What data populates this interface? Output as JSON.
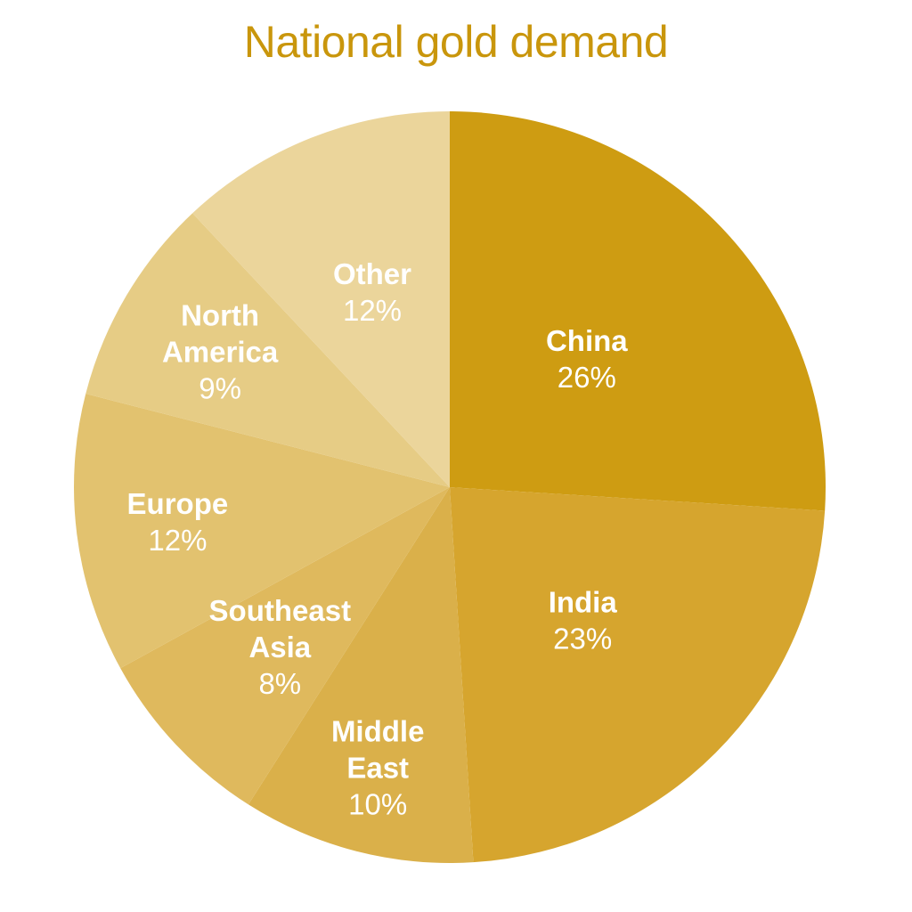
{
  "chart_data": {
    "type": "pie",
    "title": "National gold demand",
    "title_color": "#C9960C",
    "slices": [
      {
        "label": "China",
        "value": 26,
        "value_label": "26%",
        "color": "#CE9C12"
      },
      {
        "label": "India",
        "value": 23,
        "value_label": "23%",
        "color": "#D6A52E"
      },
      {
        "label": "Middle East",
        "value": 10,
        "value_label": "10%",
        "color": "#DAB04A"
      },
      {
        "label": "Southeast Asia",
        "value": 8,
        "value_label": "8%",
        "color": "#DFB95D"
      },
      {
        "label": "Europe",
        "value": 12,
        "value_label": "12%",
        "color": "#E2C26F"
      },
      {
        "label": "North America",
        "value": 9,
        "value_label": "9%",
        "color": "#E6CC85"
      },
      {
        "label": "Other",
        "value": 12,
        "value_label": "12%",
        "color": "#EBD59B"
      }
    ],
    "start": "top",
    "direction": "clockwise",
    "legend": "none"
  }
}
